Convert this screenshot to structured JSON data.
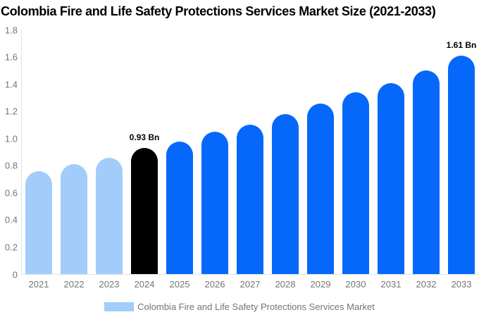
{
  "title": "Colombia Fire and Life Safety Protections Services Market Size (2021-2033)",
  "chart_data": {
    "type": "bar",
    "title": "Colombia Fire and Life Safety Protections Services Market Size (2021-2033)",
    "categories": [
      "2021",
      "2022",
      "2023",
      "2024",
      "2025",
      "2026",
      "2027",
      "2028",
      "2029",
      "2030",
      "2031",
      "2032",
      "2033"
    ],
    "values": [
      0.76,
      0.81,
      0.86,
      0.93,
      0.98,
      1.05,
      1.1,
      1.18,
      1.26,
      1.34,
      1.41,
      1.5,
      1.61
    ],
    "unit": "Bn",
    "ylim": [
      0,
      1.8
    ],
    "yticks": [
      "0",
      "0.2",
      "0.4",
      "0.6",
      "0.8",
      "1.0",
      "1.2",
      "1.4",
      "1.6",
      "1.8"
    ],
    "xlabel": "",
    "ylabel": "",
    "grid": false,
    "legend_position": "bottom",
    "annotations": [
      {
        "category": "2024",
        "label": "0.93 Bn"
      },
      {
        "category": "2033",
        "label": "1.61 Bn"
      }
    ],
    "bar_roles": [
      "historical",
      "historical",
      "historical",
      "current",
      "forecast",
      "forecast",
      "forecast",
      "forecast",
      "forecast",
      "forecast",
      "forecast",
      "forecast",
      "forecast"
    ],
    "palette": {
      "historical": "#A2CDFB",
      "current": "#000000",
      "forecast": "#0568FA"
    }
  },
  "axis": {
    "line_color": "#E0E0E0",
    "text_color": "#757575"
  },
  "legend": {
    "label": "Colombia Fire and Life Safety Protections Services Market",
    "swatch_color": "#A2CDFB"
  }
}
